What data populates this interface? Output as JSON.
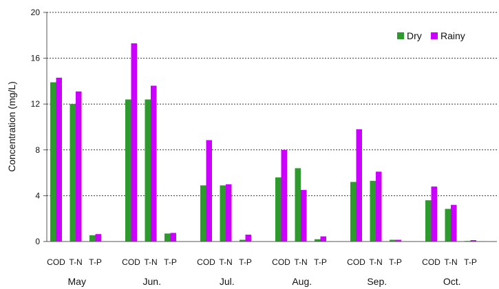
{
  "chart_data": {
    "type": "bar",
    "ylabel": "Concentration (mg/L)",
    "xlabel": "",
    "ylim": [
      0,
      20
    ],
    "yticks": [
      0,
      4,
      8,
      12,
      16,
      20
    ],
    "grid": "horizontal-dotted",
    "legend_position": "top-right",
    "sub_categories": [
      "COD",
      "T-N",
      "T-P"
    ],
    "months": [
      "May",
      "Jun.",
      "Jul.",
      "Aug.",
      "Sep.",
      "Oct."
    ],
    "series": [
      {
        "name": "Dry",
        "color": "#2e9a2e",
        "values": [
          [
            13.9,
            12.0,
            0.55
          ],
          [
            12.4,
            12.4,
            0.7
          ],
          [
            4.9,
            4.9,
            0.15
          ],
          [
            5.6,
            6.4,
            0.2
          ],
          [
            5.2,
            5.3,
            0.15
          ],
          [
            3.6,
            2.85,
            0.05
          ]
        ]
      },
      {
        "name": "Rainy",
        "color": "#cc00ff",
        "values": [
          [
            14.3,
            13.1,
            0.65
          ],
          [
            17.3,
            13.6,
            0.75
          ],
          [
            8.85,
            5.0,
            0.6
          ],
          [
            8.0,
            4.5,
            0.45
          ],
          [
            9.8,
            6.1,
            0.15
          ],
          [
            4.8,
            3.2,
            0.12
          ]
        ]
      }
    ]
  }
}
